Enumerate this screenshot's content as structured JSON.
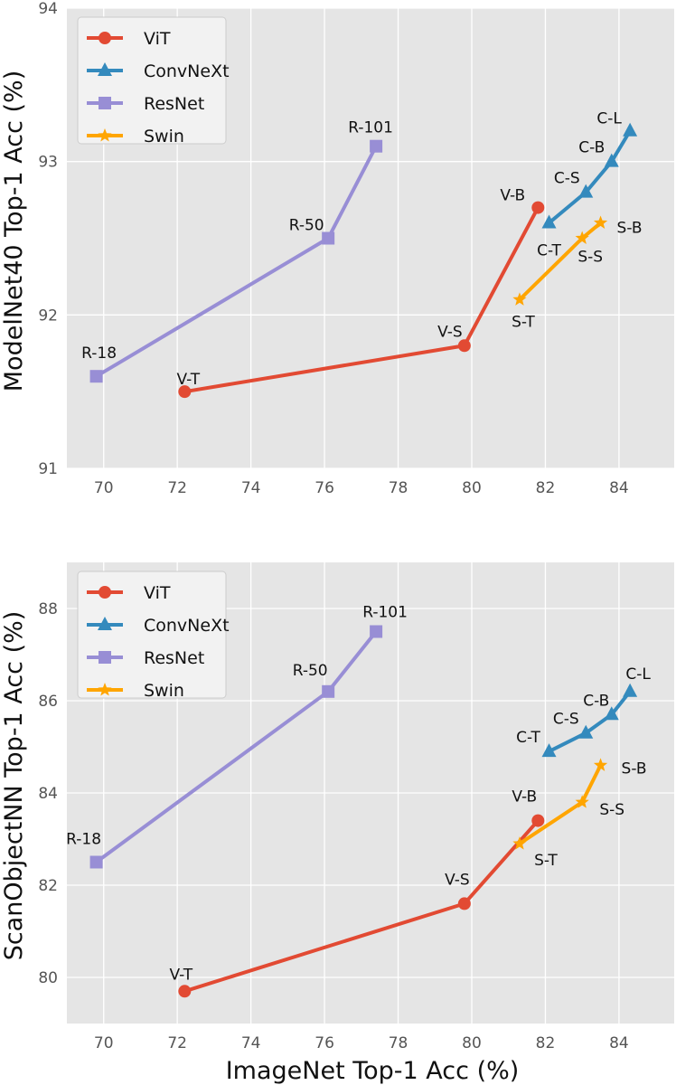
{
  "colors": {
    "ViT": "#E24A33",
    "ConvNeXt": "#348ABD",
    "ResNet": "#988ED5",
    "Swin": "#FFA500",
    "plot_bg": "#E5E5E5",
    "grid": "#FFFFFF"
  },
  "legend": [
    "ViT",
    "ConvNeXt",
    "ResNet",
    "Swin"
  ],
  "xlabel": "ImageNet Top-1 Acc (%)",
  "chart_data": [
    {
      "type": "line",
      "title": "",
      "xlabel": "ImageNet Top-1 Acc (%)",
      "ylabel": "ModelNet40 Top-1 Acc (%)",
      "xlim": [
        69,
        85.5
      ],
      "ylim": [
        91,
        94
      ],
      "xticks": [
        70,
        72,
        74,
        76,
        78,
        80,
        82,
        84
      ],
      "yticks": [
        91,
        92,
        93,
        94
      ],
      "legend_position": "top-left",
      "series": [
        {
          "name": "ViT",
          "marker": "circle",
          "points": [
            {
              "x": 72.2,
              "y": 91.5,
              "label": "V-T"
            },
            {
              "x": 79.8,
              "y": 91.8,
              "label": "V-S"
            },
            {
              "x": 81.8,
              "y": 92.7,
              "label": "V-B"
            }
          ]
        },
        {
          "name": "ConvNeXt",
          "marker": "triangle",
          "points": [
            {
              "x": 82.1,
              "y": 92.6,
              "label": "C-T"
            },
            {
              "x": 83.1,
              "y": 92.8,
              "label": "C-S"
            },
            {
              "x": 83.8,
              "y": 93.0,
              "label": "C-B"
            },
            {
              "x": 84.3,
              "y": 93.2,
              "label": "C-L"
            }
          ]
        },
        {
          "name": "ResNet",
          "marker": "square",
          "points": [
            {
              "x": 69.8,
              "y": 91.6,
              "label": "R-18"
            },
            {
              "x": 76.1,
              "y": 92.5,
              "label": "R-50"
            },
            {
              "x": 77.4,
              "y": 93.1,
              "label": "R-101"
            }
          ]
        },
        {
          "name": "Swin",
          "marker": "star",
          "points": [
            {
              "x": 81.3,
              "y": 92.1,
              "label": "S-T"
            },
            {
              "x": 83.0,
              "y": 92.5,
              "label": "S-S"
            },
            {
              "x": 83.5,
              "y": 92.6,
              "label": "S-B"
            }
          ]
        }
      ]
    },
    {
      "type": "line",
      "title": "",
      "xlabel": "ImageNet Top-1 Acc (%)",
      "ylabel": "ScanObjectNN Top-1 Acc (%)",
      "xlim": [
        69,
        85.5
      ],
      "ylim": [
        79,
        89
      ],
      "xticks": [
        70,
        72,
        74,
        76,
        78,
        80,
        82,
        84
      ],
      "yticks": [
        80,
        82,
        84,
        86,
        88
      ],
      "legend_position": "top-left",
      "series": [
        {
          "name": "ViT",
          "marker": "circle",
          "points": [
            {
              "x": 72.2,
              "y": 79.7,
              "label": "V-T"
            },
            {
              "x": 79.8,
              "y": 81.6,
              "label": "V-S"
            },
            {
              "x": 81.8,
              "y": 83.4,
              "label": "V-B"
            }
          ]
        },
        {
          "name": "ConvNeXt",
          "marker": "triangle",
          "points": [
            {
              "x": 82.1,
              "y": 84.9,
              "label": "C-T"
            },
            {
              "x": 83.1,
              "y": 85.3,
              "label": "C-S"
            },
            {
              "x": 83.8,
              "y": 85.7,
              "label": "C-B"
            },
            {
              "x": 84.3,
              "y": 86.2,
              "label": "C-L"
            }
          ]
        },
        {
          "name": "ResNet",
          "marker": "square",
          "points": [
            {
              "x": 69.8,
              "y": 82.5,
              "label": "R-18"
            },
            {
              "x": 76.1,
              "y": 86.2,
              "label": "R-50"
            },
            {
              "x": 77.4,
              "y": 87.5,
              "label": "R-101"
            }
          ]
        },
        {
          "name": "Swin",
          "marker": "star",
          "points": [
            {
              "x": 81.3,
              "y": 82.9,
              "label": "S-T"
            },
            {
              "x": 83.0,
              "y": 83.8,
              "label": "S-S"
            },
            {
              "x": 83.5,
              "y": 84.6,
              "label": "S-B"
            }
          ]
        }
      ]
    }
  ]
}
